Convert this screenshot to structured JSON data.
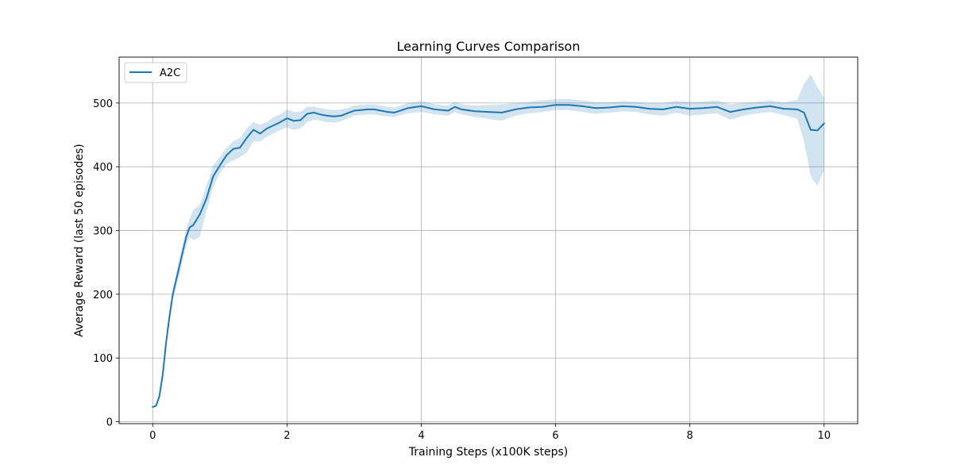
{
  "chart_data": {
    "type": "line",
    "title": "Learning Curves Comparison",
    "xlabel": "Training Steps (x100K steps)",
    "ylabel": "Average Reward (last 50 episodes)",
    "xlim": [
      -0.5,
      10.5
    ],
    "ylim": [
      -3,
      572
    ],
    "xticks": [
      0,
      2,
      4,
      6,
      8,
      10
    ],
    "yticks": [
      0,
      100,
      200,
      300,
      400,
      500
    ],
    "grid": true,
    "legend_position": "top-left",
    "series": [
      {
        "name": "A2C",
        "color": "#1f77b4",
        "band_color": "#1f77b4",
        "x": [
          0.0,
          0.05,
          0.1,
          0.15,
          0.2,
          0.25,
          0.3,
          0.4,
          0.5,
          0.55,
          0.6,
          0.7,
          0.8,
          0.9,
          1.0,
          1.1,
          1.2,
          1.3,
          1.4,
          1.5,
          1.6,
          1.7,
          1.8,
          1.9,
          2.0,
          2.1,
          2.2,
          2.3,
          2.4,
          2.5,
          2.6,
          2.7,
          2.8,
          2.9,
          3.0,
          3.1,
          3.2,
          3.3,
          3.4,
          3.5,
          3.6,
          3.8,
          4.0,
          4.2,
          4.4,
          4.5,
          4.6,
          4.8,
          5.0,
          5.2,
          5.4,
          5.6,
          5.8,
          6.0,
          6.2,
          6.4,
          6.6,
          6.8,
          7.0,
          7.2,
          7.4,
          7.6,
          7.8,
          8.0,
          8.2,
          8.4,
          8.6,
          8.8,
          9.0,
          9.2,
          9.4,
          9.6,
          9.7,
          9.8,
          9.9,
          10.0
        ],
        "y": [
          23,
          25,
          40,
          75,
          125,
          165,
          200,
          245,
          290,
          305,
          308,
          325,
          350,
          385,
          402,
          418,
          428,
          430,
          445,
          458,
          452,
          460,
          465,
          470,
          476,
          472,
          473,
          483,
          485,
          482,
          480,
          479,
          480,
          484,
          488,
          489,
          490,
          490,
          488,
          486,
          485,
          492,
          495,
          490,
          488,
          494,
          490,
          487,
          486,
          485,
          490,
          493,
          494,
          497,
          497,
          495,
          492,
          493,
          495,
          494,
          491,
          490,
          494,
          491,
          492,
          494,
          486,
          490,
          493,
          495,
          491,
          490,
          485,
          458,
          457,
          468
        ],
        "lower": [
          22,
          23,
          37,
          70,
          118,
          155,
          192,
          232,
          278,
          290,
          285,
          290,
          330,
          368,
          390,
          405,
          410,
          415,
          422,
          440,
          440,
          447,
          452,
          458,
          462,
          458,
          460,
          470,
          474,
          472,
          470,
          469,
          471,
          476,
          480,
          481,
          482,
          482,
          480,
          479,
          478,
          484,
          486,
          482,
          480,
          486,
          482,
          478,
          475,
          472,
          480,
          484,
          486,
          489,
          489,
          486,
          483,
          485,
          487,
          486,
          482,
          480,
          485,
          480,
          482,
          484,
          474,
          480,
          484,
          486,
          481,
          475,
          440,
          385,
          370,
          395
        ],
        "upper": [
          24,
          27,
          43,
          80,
          132,
          175,
          208,
          258,
          302,
          318,
          332,
          340,
          370,
          402,
          415,
          430,
          440,
          445,
          460,
          470,
          466,
          470,
          478,
          482,
          490,
          486,
          486,
          494,
          494,
          492,
          490,
          489,
          490,
          492,
          496,
          497,
          498,
          498,
          496,
          494,
          493,
          500,
          503,
          498,
          496,
          502,
          498,
          496,
          497,
          498,
          500,
          502,
          504,
          506,
          506,
          504,
          501,
          501,
          503,
          502,
          500,
          500,
          503,
          502,
          502,
          504,
          498,
          500,
          502,
          504,
          501,
          505,
          530,
          545,
          525,
          508
        ]
      }
    ]
  }
}
